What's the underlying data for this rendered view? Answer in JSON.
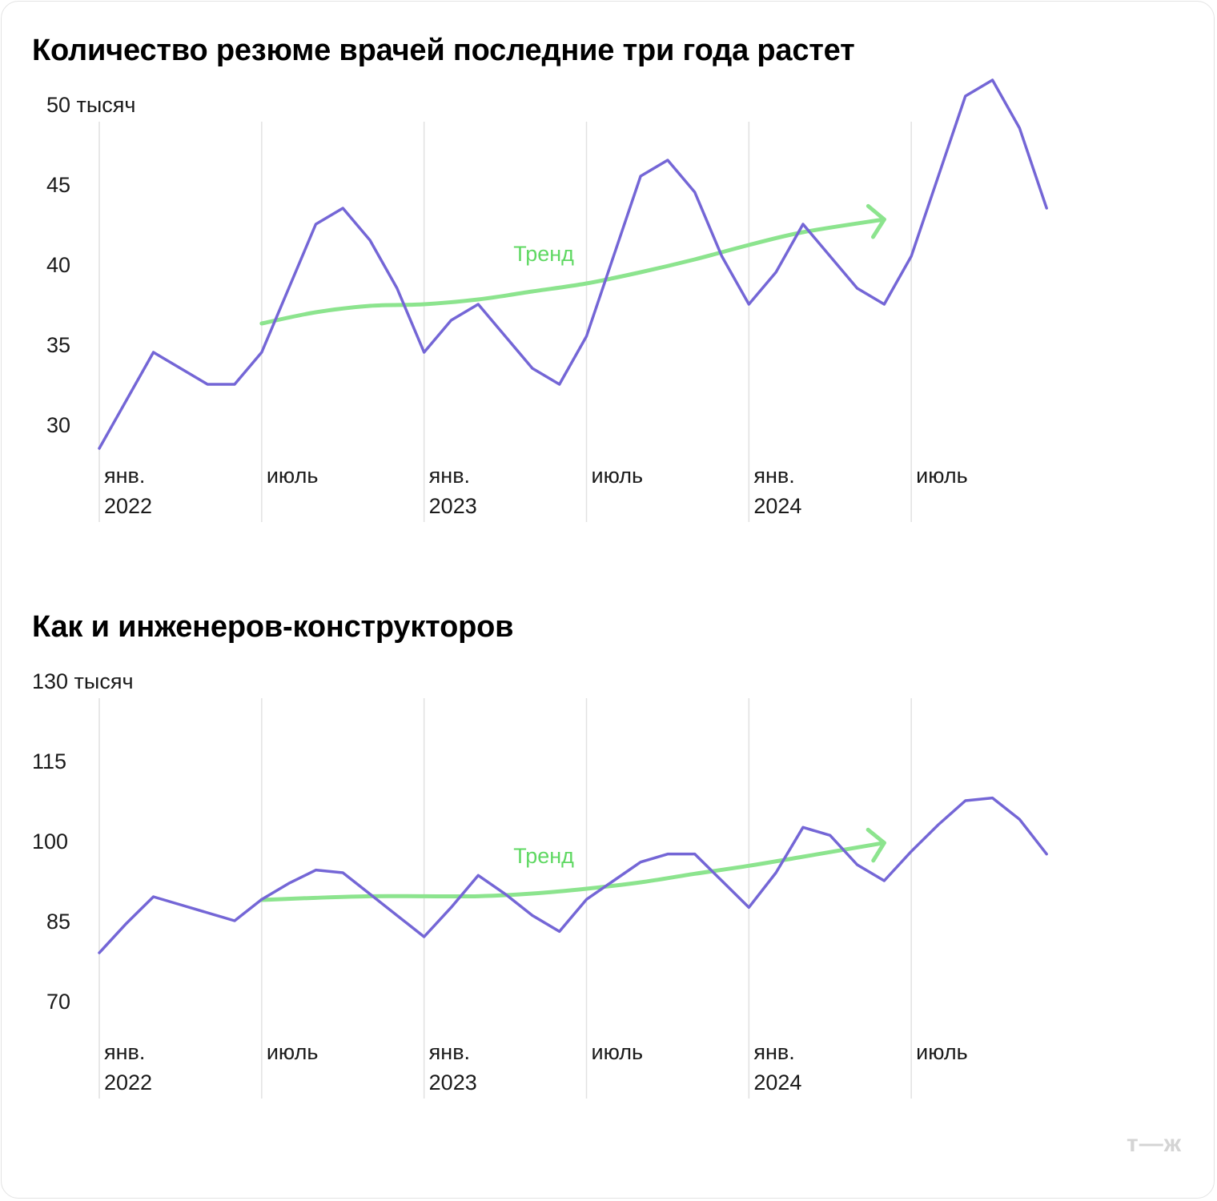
{
  "colors": {
    "series": "#7466d6",
    "trend": "#8ce48e",
    "trend_label": "#5fd862",
    "grid": "#e1e1e1",
    "text": "#000000"
  },
  "logo": "т—ж",
  "chart_data": [
    {
      "type": "line",
      "title": "Количество резюме врачей последние три года растет",
      "ylim": [
        27.5,
        51.5
      ],
      "yticks": [
        30,
        35,
        40,
        45,
        50
      ],
      "ytick_labels": [
        "30",
        "35",
        "40",
        "45",
        "50 тысяч"
      ],
      "grid": "vertical",
      "xlim": [
        0,
        36
      ],
      "xgrid_months": [
        0,
        6,
        12,
        18,
        24,
        30
      ],
      "xtick_labels": [
        {
          "month": 0,
          "line1": "янв.",
          "line2": "2022"
        },
        {
          "month": 6,
          "line1": "июль",
          "line2": ""
        },
        {
          "month": 12,
          "line1": "янв.",
          "line2": "2023"
        },
        {
          "month": 18,
          "line1": "июль",
          "line2": ""
        },
        {
          "month": 24,
          "line1": "янв.",
          "line2": "2024"
        },
        {
          "month": 30,
          "line1": "июль",
          "line2": ""
        }
      ],
      "series": [
        {
          "x": [
            0,
            1,
            2,
            3,
            4,
            5,
            6,
            7,
            8,
            9,
            10,
            11,
            12,
            13,
            14,
            15,
            16,
            17,
            18,
            19,
            20,
            21,
            22,
            23,
            24,
            25,
            26,
            27,
            28,
            29,
            30,
            31,
            32,
            33,
            34,
            35
          ],
          "values": [
            28.5,
            31.5,
            34.5,
            33.5,
            32.5,
            32.5,
            34.5,
            38.5,
            42.5,
            43.5,
            41.5,
            38.5,
            34.5,
            36.5,
            37.5,
            35.5,
            33.5,
            32.5,
            35.5,
            40.5,
            45.5,
            46.5,
            44.5,
            40.5,
            37.5,
            39.5,
            42.5,
            40.5,
            38.5,
            37.5,
            40.5,
            45.5,
            50.5,
            51.5,
            48.5,
            43.5
          ]
        }
      ],
      "trend": {
        "label": "Тренд",
        "x": [
          6,
          8,
          10,
          12,
          14,
          16,
          18,
          20,
          22,
          24,
          26,
          29
        ],
        "values": [
          36.3,
          37.0,
          37.4,
          37.5,
          37.8,
          38.3,
          38.8,
          39.5,
          40.3,
          41.2,
          42.0,
          42.8
        ]
      }
    },
    {
      "type": "line",
      "title": "Как и инженеров-конструкторов",
      "ylim": [
        62.5,
        134.5
      ],
      "yticks": [
        70,
        85,
        100,
        115,
        130
      ],
      "ytick_labels": [
        "70",
        "85",
        "100",
        "115",
        "130 тысяч"
      ],
      "grid": "vertical",
      "xlim": [
        0,
        36
      ],
      "xgrid_months": [
        0,
        6,
        12,
        18,
        24,
        30
      ],
      "xtick_labels": [
        {
          "month": 0,
          "line1": "янв.",
          "line2": "2022"
        },
        {
          "month": 6,
          "line1": "июль",
          "line2": ""
        },
        {
          "month": 12,
          "line1": "янв.",
          "line2": "2023"
        },
        {
          "month": 18,
          "line1": "июль",
          "line2": ""
        },
        {
          "month": 24,
          "line1": "янв.",
          "line2": "2024"
        },
        {
          "month": 30,
          "line1": "июль",
          "line2": ""
        }
      ],
      "series": [
        {
          "x": [
            0,
            1,
            2,
            3,
            4,
            5,
            6,
            7,
            8,
            9,
            10,
            11,
            12,
            13,
            14,
            15,
            16,
            17,
            18,
            19,
            20,
            21,
            22,
            23,
            24,
            25,
            26,
            27,
            28,
            29,
            30,
            31,
            32,
            33,
            34,
            35
          ],
          "values": [
            79,
            84.5,
            89.5,
            88,
            86.5,
            85,
            89,
            92,
            94.5,
            94,
            90,
            86,
            82,
            87.5,
            93.5,
            90,
            86,
            83,
            89,
            92.5,
            96,
            97.5,
            97.5,
            92.5,
            87.5,
            94,
            102.5,
            101,
            95.5,
            92.5,
            98,
            103,
            107.5,
            108,
            104,
            97.5
          ]
        }
      ],
      "trend": {
        "label": "Тренд",
        "x": [
          6,
          8,
          10,
          12,
          14,
          16,
          18,
          20,
          22,
          24,
          26,
          29
        ],
        "values": [
          88.9,
          89.3,
          89.6,
          89.6,
          89.6,
          90.1,
          91.0,
          92.2,
          93.8,
          95.3,
          97.0,
          99.6
        ]
      }
    }
  ]
}
